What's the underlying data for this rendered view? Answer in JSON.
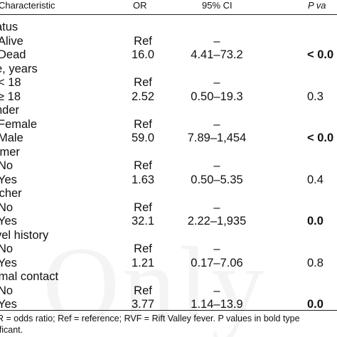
{
  "table": {
    "headers": {
      "characteristic": "Characteristic",
      "or": "OR",
      "ci": "95% CI",
      "p": "P va"
    },
    "rows": [
      {
        "label": "atus",
        "kind": "category",
        "or": "",
        "ci": "",
        "p": "",
        "p_bold": false
      },
      {
        "label": "Alive",
        "kind": "level",
        "or": "Ref",
        "ci": "–",
        "p": "",
        "p_bold": false
      },
      {
        "label": "Dead",
        "kind": "level",
        "or": "16.0",
        "ci": "4.41–73.2",
        "p": "< 0.0",
        "p_bold": true
      },
      {
        "label": "e, years",
        "kind": "category",
        "or": "",
        "ci": "",
        "p": "",
        "p_bold": false
      },
      {
        "label": "< 18",
        "kind": "level",
        "or": "Ref",
        "ci": "–",
        "p": "",
        "p_bold": false
      },
      {
        "label": "≥ 18",
        "kind": "level",
        "or": "2.52",
        "ci": "0.50–19.3",
        "p": "0.3",
        "p_bold": false
      },
      {
        "label": "nder",
        "kind": "category",
        "or": "",
        "ci": "",
        "p": "",
        "p_bold": false
      },
      {
        "label": "Female",
        "kind": "level",
        "or": "Ref",
        "ci": "–",
        "p": "",
        "p_bold": false
      },
      {
        "label": "Male",
        "kind": "level",
        "or": "59.0",
        "ci": "7.89–1,454",
        "p": "< 0.0",
        "p_bold": true
      },
      {
        "label": "rmer",
        "kind": "category",
        "or": "",
        "ci": "",
        "p": "",
        "p_bold": false
      },
      {
        "label": "No",
        "kind": "level",
        "or": "Ref",
        "ci": "–",
        "p": "",
        "p_bold": false
      },
      {
        "label": "Yes",
        "kind": "level",
        "or": "1.63",
        "ci": "0.50–5.35",
        "p": "0.4",
        "p_bold": false
      },
      {
        "label": "tcher",
        "kind": "category",
        "or": "",
        "ci": "",
        "p": "",
        "p_bold": false
      },
      {
        "label": "No",
        "kind": "level",
        "or": "Ref",
        "ci": "–",
        "p": "",
        "p_bold": false
      },
      {
        "label": "Yes",
        "kind": "level",
        "or": "32.1",
        "ci": "2.22–1,935",
        "p": "0.0",
        "p_bold": true
      },
      {
        "label": "vel history",
        "kind": "category",
        "or": "",
        "ci": "",
        "p": "",
        "p_bold": false
      },
      {
        "label": "No",
        "kind": "level",
        "or": "Ref",
        "ci": "–",
        "p": "",
        "p_bold": false
      },
      {
        "label": "Yes",
        "kind": "level",
        "or": "1.21",
        "ci": "0.17–7.06",
        "p": "0.8",
        "p_bold": false
      },
      {
        "label": "imal contact",
        "kind": "category",
        "or": "",
        "ci": "",
        "p": "",
        "p_bold": false
      },
      {
        "label": "No",
        "kind": "level",
        "or": "Ref",
        "ci": "–",
        "p": "",
        "p_bold": false
      },
      {
        "label": "Yes",
        "kind": "level",
        "or": "3.77",
        "ci": "1.14–13.9",
        "p": "0.0",
        "p_bold": true
      }
    ],
    "footnote": {
      "line1": "R = odds ratio; Ref = reference; RVF = Rift Valley fever. P values in bold type",
      "line2": "ificant."
    }
  },
  "watermark": "Only"
}
